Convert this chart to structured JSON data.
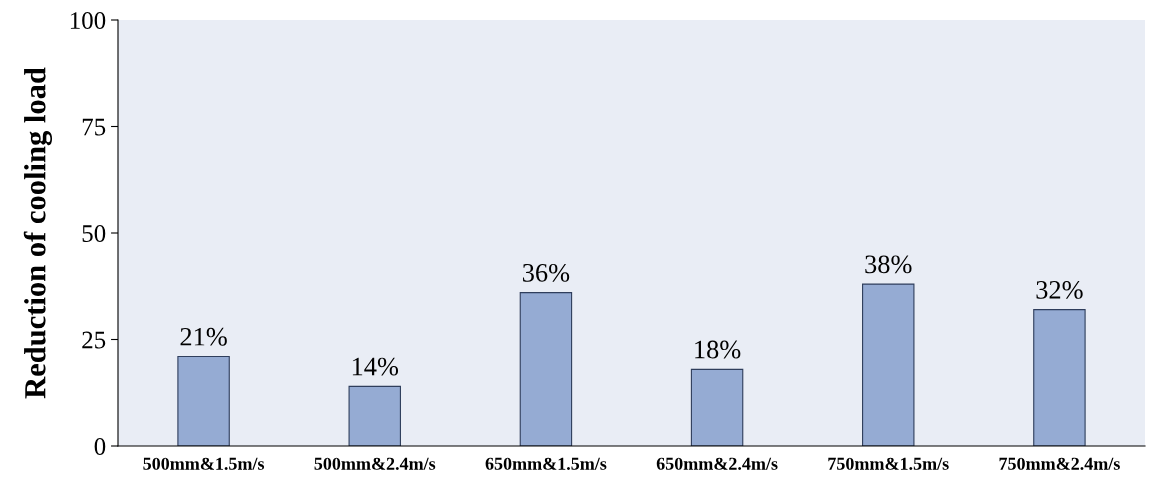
{
  "chart_data": {
    "type": "bar",
    "ylabel": "Reduction of cooling load",
    "categories": [
      "500mm&1.5m/s",
      "500mm&2.4m/s",
      "650mm&1.5m/s",
      "650mm&2.4m/s",
      "750mm&1.5m/s",
      "750mm&2.4m/s"
    ],
    "values": [
      21,
      14,
      36,
      18,
      38,
      32
    ],
    "value_labels": [
      "21%",
      "14%",
      "36%",
      "18%",
      "38%",
      "32%"
    ],
    "color": "#95abd3",
    "ylim": [
      0,
      100
    ],
    "yticks": [
      0,
      25,
      50,
      75,
      100
    ],
    "grid": false,
    "legend": false
  }
}
